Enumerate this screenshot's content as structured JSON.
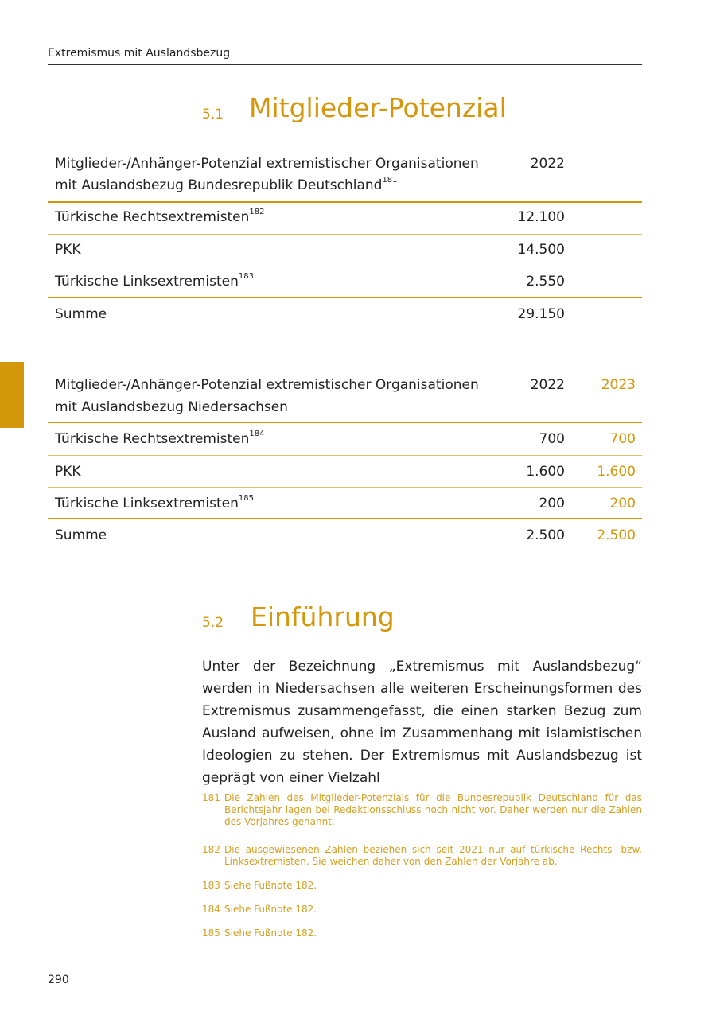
{
  "header": {
    "running_title": "Extremismus mit Auslandsbezug",
    "page_number": "290"
  },
  "accent_color": "#d4960a",
  "section1": {
    "number": "5.1",
    "title": "Mitglieder-Potenzial"
  },
  "table_federal": {
    "caption_line1": "Mitglieder-/Anhänger-Potenzial extremistischer Organisationen",
    "caption_line2": "mit Auslandsbezug Bundesrepublik Deutschland",
    "caption_note": "181",
    "columns": [
      "2022"
    ],
    "rows": [
      {
        "label": "Türkische Rechtsextremisten",
        "note": "182",
        "values": [
          "12.100"
        ]
      },
      {
        "label": "PKK",
        "note": "",
        "values": [
          "14.500"
        ]
      },
      {
        "label": "Türkische Linksextremisten",
        "note": "183",
        "values": [
          "2.550"
        ]
      }
    ],
    "total": {
      "label": "Summe",
      "values": [
        "29.150"
      ]
    }
  },
  "table_niedersachsen": {
    "caption_line1": "Mitglieder-/Anhänger-Potenzial extremistischer Organisationen",
    "caption_line2": "mit Auslandsbezug Niedersachsen",
    "columns": [
      "2022",
      "2023"
    ],
    "rows": [
      {
        "label": "Türkische Rechtsextremisten",
        "note": "184",
        "values": [
          "700",
          "700"
        ]
      },
      {
        "label": "PKK",
        "note": "",
        "values": [
          "1.600",
          "1.600"
        ]
      },
      {
        "label": "Türkische Linksextremisten",
        "note": "185",
        "values": [
          "200",
          "200"
        ]
      }
    ],
    "total": {
      "label": "Summe",
      "values": [
        "2.500",
        "2.500"
      ]
    }
  },
  "section2": {
    "number": "5.2",
    "title": "Einführung",
    "body": "Unter der Bezeichnung „Extremismus mit Auslandsbezug“ werden in Niedersachsen alle weiteren Erscheinungsformen des Extremismus zusammengefasst, die einen starken Bezug zum Ausland aufweisen, ohne im Zusammenhang mit islamistischen Ideologien zu stehen. Der Extremismus mit Auslandsbezug ist geprägt von einer Vielzahl"
  },
  "footnotes": [
    {
      "n": "181",
      "text": "Die Zahlen des Mitglieder-Potenzials für die Bundesrepublik Deutschland für das Berichts­jahr lagen bei Redaktionsschluss noch nicht vor. Daher werden nur die Zahlen des Vor­jahres genannt."
    },
    {
      "n": "182",
      "text": "Die ausgewiesenen Zahlen beziehen sich seit 2021 nur auf türkische Rechts- bzw. Links­extremisten. Sie weichen daher von den Zahlen der Vorjahre ab."
    },
    {
      "n": "183",
      "text": "Siehe Fußnote 182."
    },
    {
      "n": "184",
      "text": "Siehe Fußnote 182."
    },
    {
      "n": "185",
      "text": "Siehe Fußnote 182."
    }
  ]
}
